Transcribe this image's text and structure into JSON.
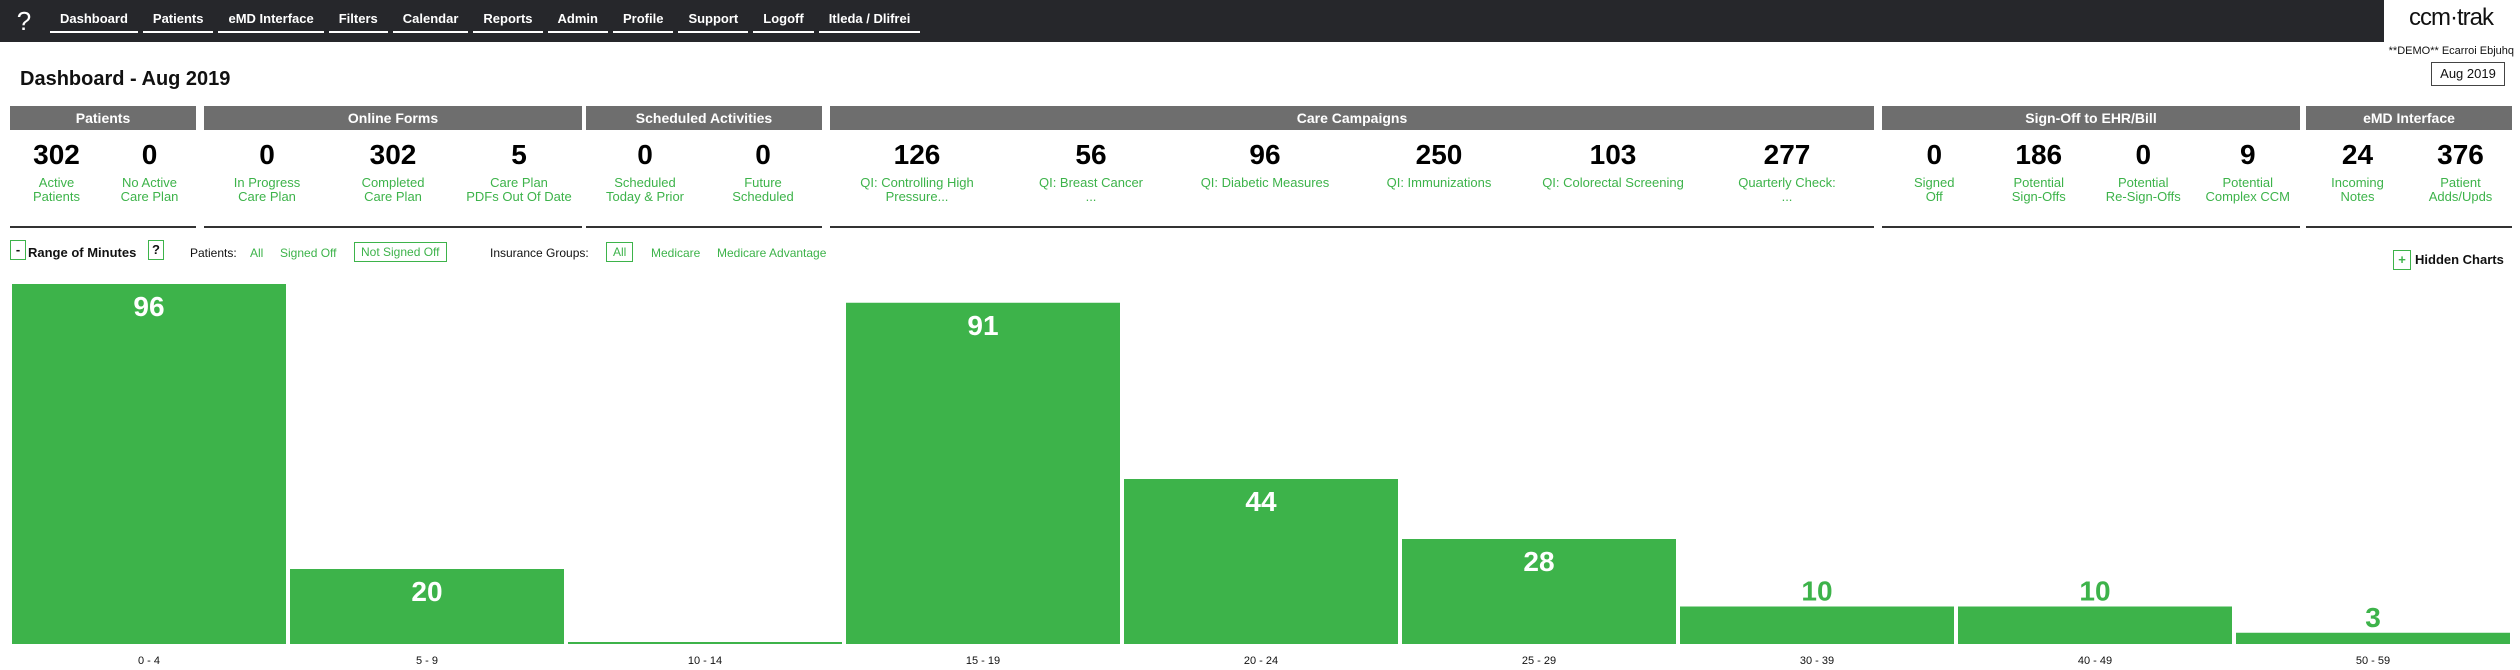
{
  "nav": {
    "help": "?",
    "items": [
      "Dashboard",
      "Patients",
      "eMD Interface",
      "Filters",
      "Calendar",
      "Reports",
      "Admin",
      "Profile",
      "Support",
      "Logoff",
      "Itleda / Dlifrei"
    ]
  },
  "brand": {
    "logo": "ccm·trak",
    "user_line": "**DEMO** Ecarroi Ebjuhq",
    "month": "Aug 2019"
  },
  "page_title": "Dashboard - Aug 2019",
  "panels": [
    {
      "title": "Patients",
      "metrics": [
        {
          "value": "302",
          "label": "Active\nPatients"
        },
        {
          "value": "0",
          "label": "No Active\nCare Plan"
        }
      ]
    },
    {
      "title": "Online Forms",
      "metrics": [
        {
          "value": "0",
          "label": "In Progress\nCare Plan"
        },
        {
          "value": "302",
          "label": "Completed\nCare Plan"
        },
        {
          "value": "5",
          "label": "Care Plan\nPDFs Out Of Date"
        }
      ]
    },
    {
      "title": "Scheduled Activities",
      "metrics": [
        {
          "value": "0",
          "label": "Scheduled\nToday & Prior"
        },
        {
          "value": "0",
          "label": "Future\nScheduled"
        }
      ]
    },
    {
      "title": "Care Campaigns",
      "metrics": [
        {
          "value": "126",
          "label": "QI: Controlling High\nPressure..."
        },
        {
          "value": "56",
          "label": "QI: Breast Cancer\n..."
        },
        {
          "value": "96",
          "label": "QI: Diabetic Measures"
        },
        {
          "value": "250",
          "label": "QI: Immunizations"
        },
        {
          "value": "103",
          "label": "QI: Colorectal Screening"
        },
        {
          "value": "277",
          "label": "Quarterly Check:\n..."
        }
      ]
    },
    {
      "title": "Sign-Off to EHR/Bill",
      "metrics": [
        {
          "value": "0",
          "label": "Signed\nOff"
        },
        {
          "value": "186",
          "label": "Potential\nSign-Offs"
        },
        {
          "value": "0",
          "label": "Potential\nRe-Sign-Offs"
        },
        {
          "value": "9",
          "label": "Potential\nComplex CCM"
        }
      ]
    },
    {
      "title": "eMD Interface",
      "metrics": [
        {
          "value": "24",
          "label": "Incoming\nNotes"
        },
        {
          "value": "376",
          "label": "Patient\nAdds/Upds"
        }
      ]
    }
  ],
  "filters": {
    "collapse": "-",
    "range_title": "Range of Minutes",
    "help": "?",
    "patients_label": "Patients:",
    "patients_options": [
      "All",
      "Signed Off",
      "Not Signed Off"
    ],
    "insurance_label": "Insurance Groups:",
    "insurance_options": [
      "All",
      "Medicare",
      "Medicare Advantage"
    ]
  },
  "hidden_charts": {
    "icon": "+",
    "label": "Hidden Charts"
  },
  "chart_data": {
    "type": "bar",
    "title": "Range of Minutes",
    "categories": [
      "0 - 4",
      "5 - 9",
      "10 - 14",
      "15 - 19",
      "20 - 24",
      "25 - 29",
      "30 - 39",
      "40 - 49",
      "50 - 59"
    ],
    "values": [
      96,
      20,
      0,
      91,
      44,
      28,
      10,
      10,
      3
    ],
    "color": "#3db34a",
    "ylim": [
      0,
      96
    ],
    "grid": false,
    "legend": "none"
  }
}
